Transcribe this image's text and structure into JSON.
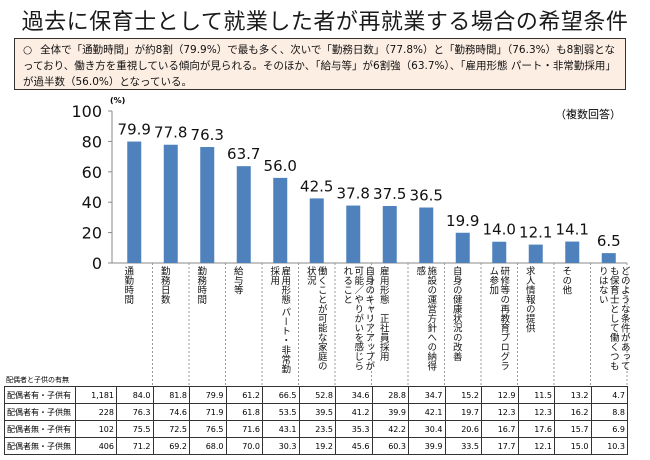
{
  "title": "過去に保育士として就業した者が再就業する場合の希望条件",
  "summary": {
    "bullet": "○",
    "text": "全体で「通勤時間」が約8割（79.9%）で最も多く、次いで「勤務日数」（77.8%）と「勤務時間」（76.3%）も8割弱となっており、働き方を重視している傾向が見られる。そのほか、「給与等」が6割強（63.7%）、「雇用形態 パート・非常勤採用」が過半数（56.0%）となっている。"
  },
  "chart_data": {
    "type": "bar",
    "ylabel": "(%)",
    "note": "（複数回答）",
    "ylim": [
      0,
      100
    ],
    "yticks": [
      0,
      20,
      40,
      60,
      80,
      100
    ],
    "bar_color": "#4f81bd",
    "categories": [
      "通勤時間",
      "勤務日数",
      "勤務時間",
      "給与等",
      "雇用形態 パート・非常勤採用",
      "働くことが可能な家庭の状況",
      "自身のキャリアアップが可能／やりがいを感じられること",
      "雇用形態　正社員採用",
      "施設の運営方針への納得感",
      "自身の健康状況の改善",
      "研修等の再教育プログラム参加",
      "求人情報の提供",
      "その他",
      "どのような条件があっても保育士として働くつもりはない"
    ],
    "values": [
      79.9,
      77.8,
      76.3,
      63.7,
      56.0,
      42.5,
      37.8,
      37.5,
      36.5,
      19.9,
      14.0,
      12.1,
      14.1,
      6.5
    ]
  },
  "table": {
    "header": "配偶者と子供の有無",
    "rows": [
      {
        "label": "配偶者有・子供有",
        "n": "1,181",
        "values": [
          "84.0",
          "81.8",
          "79.9",
          "61.2",
          "66.5",
          "52.8",
          "34.6",
          "28.8",
          "34.7",
          "15.2",
          "12.9",
          "11.5",
          "13.2",
          "4.7"
        ]
      },
      {
        "label": "配偶者有・子供無",
        "n": "228",
        "values": [
          "76.3",
          "74.6",
          "71.9",
          "61.8",
          "53.5",
          "39.5",
          "41.2",
          "39.9",
          "42.1",
          "19.7",
          "12.3",
          "12.3",
          "16.2",
          "8.8"
        ]
      },
      {
        "label": "配偶者無・子供有",
        "n": "102",
        "values": [
          "75.5",
          "72.5",
          "76.5",
          "71.6",
          "43.1",
          "23.5",
          "35.3",
          "42.2",
          "30.4",
          "20.6",
          "16.7",
          "17.6",
          "15.7",
          "6.9"
        ]
      },
      {
        "label": "配偶者無・子供無",
        "n": "406",
        "values": [
          "71.2",
          "69.2",
          "68.0",
          "70.0",
          "30.3",
          "19.2",
          "45.6",
          "60.3",
          "39.9",
          "33.5",
          "17.7",
          "12.1",
          "15.0",
          "10.3"
        ]
      }
    ]
  }
}
